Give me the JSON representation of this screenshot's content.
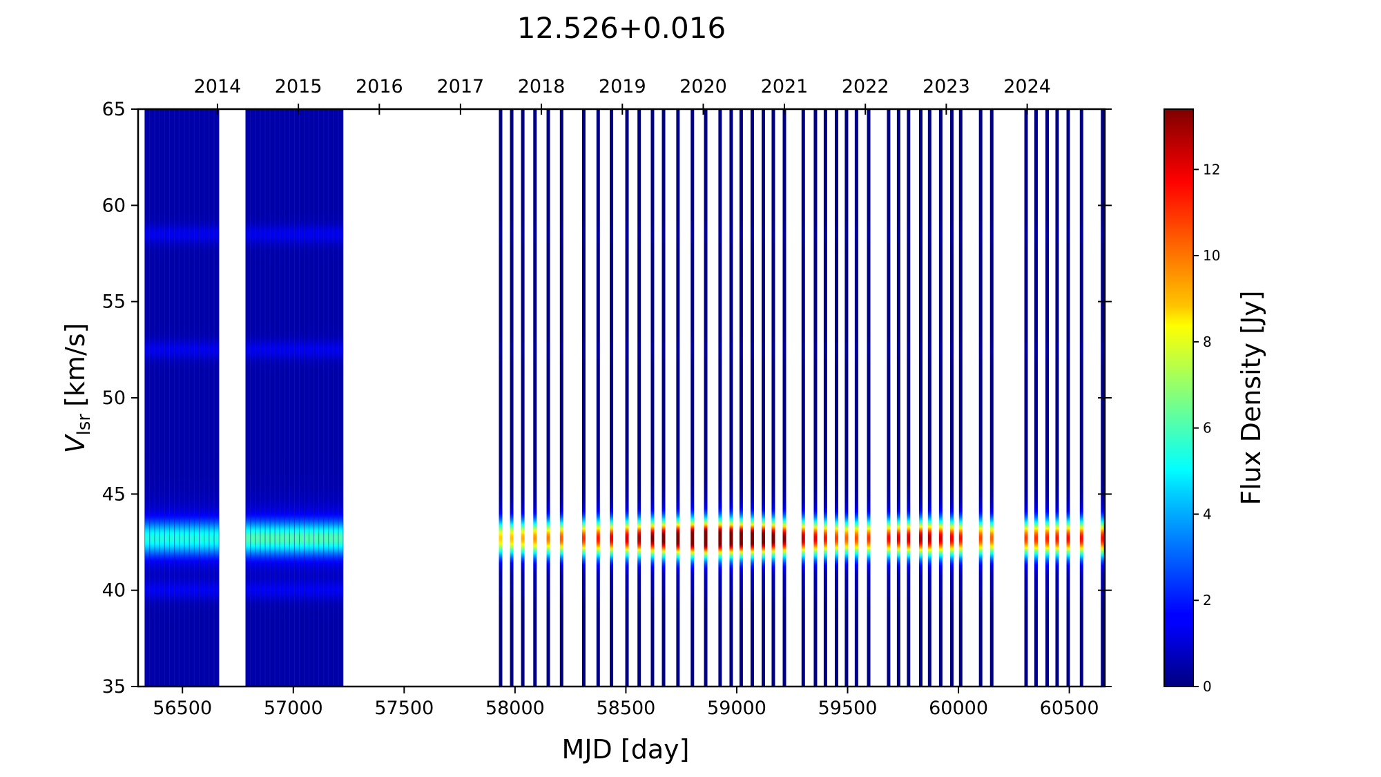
{
  "chart_data": {
    "type": "heatmap",
    "title": "12.526+0.016",
    "xlabel": "MJD [day]",
    "ylabel": {
      "main": "V",
      "subscript": "lsr",
      "unit": "[km/s]"
    },
    "colorbar_label": "Flux Density [Jy]",
    "colormap": "jet",
    "xlim": [
      56300,
      60660
    ],
    "ylim": [
      35,
      65
    ],
    "clim": [
      0,
      13.4
    ],
    "x_ticks": [
      56500,
      57000,
      57500,
      58000,
      58500,
      59000,
      59500,
      60000,
      60500
    ],
    "x_tick_labels": [
      "56500",
      "57000",
      "57500",
      "58000",
      "58500",
      "59000",
      "59500",
      "60000",
      "60500"
    ],
    "y_ticks": [
      35,
      40,
      45,
      50,
      55,
      60,
      65
    ],
    "y_tick_labels": [
      "35",
      "40",
      "45",
      "50",
      "55",
      "60",
      "65"
    ],
    "colorbar_ticks": [
      0,
      2,
      4,
      6,
      8,
      10,
      12
    ],
    "colorbar_tick_labels": [
      "0",
      "2",
      "4",
      "6",
      "8",
      "10",
      "12"
    ],
    "top_axis": {
      "label_positions_mjd": [
        56658,
        57023,
        57388,
        57754,
        58119,
        58484,
        58849,
        59215,
        59580,
        59945,
        60310
      ],
      "labels": [
        "2014",
        "2015",
        "2016",
        "2017",
        "2018",
        "2019",
        "2020",
        "2021",
        "2022",
        "2023",
        "2024"
      ]
    },
    "grid": false,
    "observation_blocks_mjd": [
      {
        "start": 56330,
        "end": 56665
      },
      {
        "start": 56785,
        "end": 57225
      }
    ],
    "observation_epochs_mjd": [
      57935,
      57985,
      58035,
      58090,
      58150,
      58210,
      58310,
      58375,
      58435,
      58505,
      58560,
      58620,
      58670,
      58735,
      58800,
      58860,
      58925,
      58975,
      59020,
      59070,
      59120,
      59165,
      59215,
      59300,
      59355,
      59400,
      59450,
      59495,
      59540,
      59595,
      59685,
      59730,
      59775,
      59830,
      59870,
      59920,
      59970,
      60010,
      60100,
      60150,
      60305,
      60350,
      60400,
      60445,
      60495,
      60555,
      60650
    ],
    "emission_feature": {
      "velocity_center_kms": 42.7,
      "velocity_width_kms": 0.6,
      "peak_flux_by_epoch_jy": [
        {
          "mjd": 56500,
          "flux": 4.0
        },
        {
          "mjd": 57000,
          "flux": 4.5
        },
        {
          "mjd": 58000,
          "flux": 7.5
        },
        {
          "mjd": 58500,
          "flux": 10.0
        },
        {
          "mjd": 58850,
          "flux": 13.0
        },
        {
          "mjd": 59100,
          "flux": 12.0
        },
        {
          "mjd": 59500,
          "flux": 8.5
        },
        {
          "mjd": 59850,
          "flux": 10.5
        },
        {
          "mjd": 60150,
          "flux": 8.5
        },
        {
          "mjd": 60500,
          "flux": 9.5
        }
      ]
    },
    "weak_features_kms": [
      58.5,
      52.5,
      40.0
    ]
  }
}
